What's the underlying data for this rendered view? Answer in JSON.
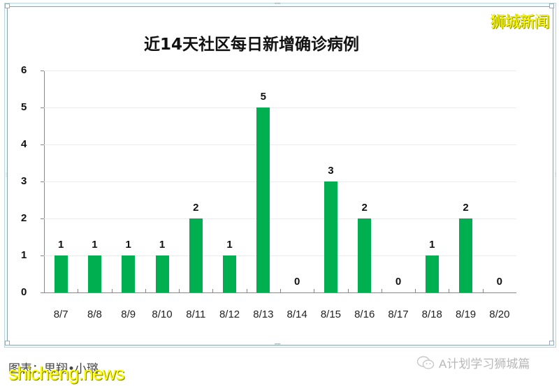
{
  "watermark_top": "狮城新闻",
  "credit_text": "图表：思翔•小璐",
  "site_watermark": "shicheng.news",
  "wechat_account": "A计划学习狮城篇",
  "colors": {
    "bar": "#00b050",
    "watermark": "#ffff00"
  },
  "y_ticks": [
    "0",
    "1",
    "2",
    "3",
    "4",
    "5",
    "6"
  ],
  "chart_data": {
    "type": "bar",
    "title": "近14天社区每日新增确诊病例",
    "categories": [
      "8/7",
      "8/8",
      "8/9",
      "8/10",
      "8/11",
      "8/12",
      "8/13",
      "8/14",
      "8/15",
      "8/16",
      "8/17",
      "8/18",
      "8/19",
      "8/20"
    ],
    "values": [
      1,
      1,
      1,
      1,
      2,
      1,
      5,
      0,
      3,
      2,
      0,
      1,
      2,
      0
    ],
    "data_labels": [
      "1",
      "1",
      "1",
      "1",
      "2",
      "1",
      "5",
      "0",
      "3",
      "2",
      "0",
      "1",
      "2",
      "0"
    ],
    "xlabel": "",
    "ylabel": "",
    "ylim": [
      0,
      6
    ],
    "y_tick_step": 1,
    "grid": true,
    "legend": null,
    "series_color": "#00b050"
  }
}
